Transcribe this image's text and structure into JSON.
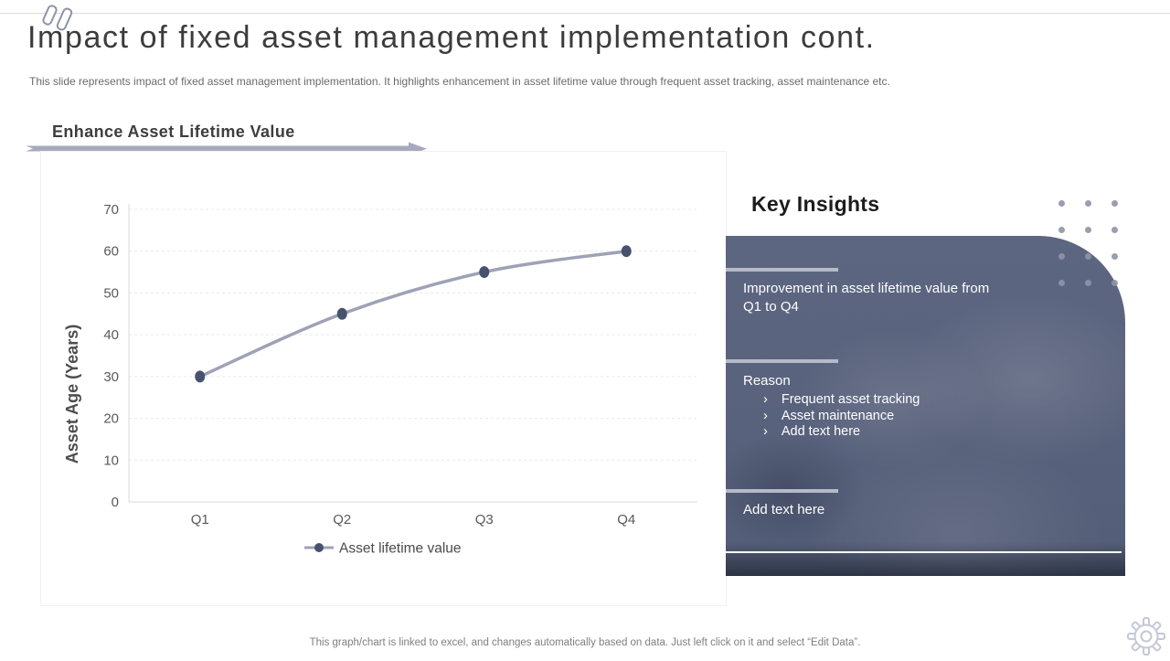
{
  "slide": {
    "title": "Impact of fixed asset management implementation cont.",
    "subtitle": "This slide represents impact of fixed asset management implementation. It highlights enhancement in asset lifetime value through frequent asset tracking, asset maintenance etc.",
    "footer": "This graph/chart is linked to excel, and changes automatically based on data. Just left click on it and select “Edit Data”."
  },
  "section": {
    "heading": "Enhance Asset Lifetime Value"
  },
  "chart_data": {
    "type": "line",
    "title": "",
    "categories": [
      "Q1",
      "Q2",
      "Q3",
      "Q4"
    ],
    "series": [
      {
        "name": "Asset lifetime value",
        "values": [
          30,
          45,
          55,
          60
        ]
      }
    ],
    "xlabel": "",
    "ylabel": "Asset Age (Years)",
    "ylim": [
      0,
      70
    ],
    "ytick_step": 10,
    "grid": true,
    "legend_position": "bottom",
    "line_color": "#9fa2b6",
    "marker_color": "#47526e"
  },
  "insights": {
    "heading": "Key Insights",
    "item1": "Improvement  in asset lifetime value from Q1 to Q4",
    "reason_label": "Reason",
    "bullet_glyph": "›",
    "reason_bullets": [
      "Frequent asset tracking",
      "Asset maintenance",
      "Add text here"
    ],
    "item3": "Add text here"
  },
  "colors": {
    "panel": "#5a6480",
    "arrow": "#a7aabd",
    "divider": "#b6bac8",
    "dots": "#9094a8"
  }
}
